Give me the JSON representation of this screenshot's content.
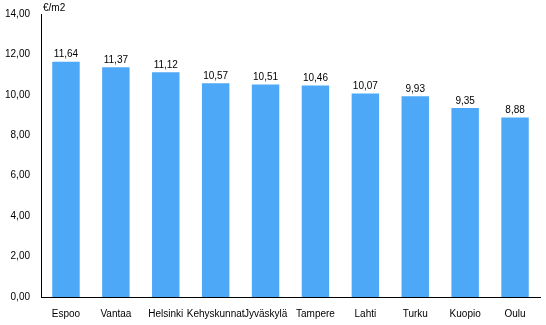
{
  "chart_data": {
    "type": "bar",
    "ylabel": "€/m2",
    "categories": [
      "Espoo",
      "Vantaa",
      "Helsinki",
      "Kehyskunnat",
      "Jyväskylä",
      "Tampere",
      "Lahti",
      "Turku",
      "Kuopio",
      "Oulu"
    ],
    "values": [
      11.64,
      11.37,
      11.12,
      10.57,
      10.51,
      10.46,
      10.07,
      9.93,
      9.35,
      8.88
    ],
    "value_labels": [
      "11,64",
      "11,37",
      "11,12",
      "10,57",
      "10,51",
      "10,46",
      "10,07",
      "9,93",
      "9,35",
      "8,88"
    ],
    "data_labels": true,
    "color": "#4da9f7",
    "ylim": [
      0,
      14
    ],
    "yticks": [
      {
        "value": 0,
        "label": "0,00"
      },
      {
        "value": 2,
        "label": "2,00"
      },
      {
        "value": 4,
        "label": "4,00"
      },
      {
        "value": 6,
        "label": "6,00"
      },
      {
        "value": 8,
        "label": "8,00"
      },
      {
        "value": 10,
        "label": "10,00"
      },
      {
        "value": 12,
        "label": "12,00"
      },
      {
        "value": 14,
        "label": "14,00"
      }
    ],
    "grid": false
  }
}
